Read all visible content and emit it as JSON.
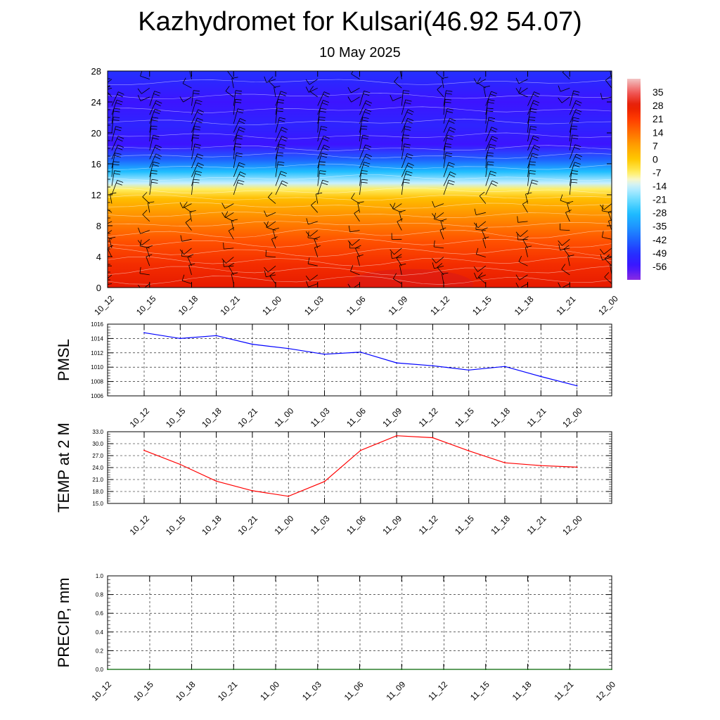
{
  "title": "Kazhydromet for Kulsari(46.92 54.07)",
  "subtitle": "10 May 2025",
  "chart_data": [
    {
      "type": "heatmap",
      "name": "upper-air temperature and wind cross-section",
      "x": [
        "10_12",
        "10_15",
        "10_18",
        "10_21",
        "11_00",
        "11_03",
        "11_06",
        "11_09",
        "11_12",
        "11_15",
        "11_18",
        "11_21",
        "12_00"
      ],
      "ylim": [
        0,
        28
      ],
      "yticks": [
        "0",
        "4",
        "8",
        "12",
        "16",
        "20",
        "24",
        "28"
      ],
      "temperature_by_level": [
        {
          "y": 0,
          "value": 28
        },
        {
          "y": 3,
          "value": 24
        },
        {
          "y": 6,
          "value": 18
        },
        {
          "y": 9,
          "value": 10
        },
        {
          "y": 11.5,
          "value": 2
        },
        {
          "y": 12.7,
          "value": -7
        },
        {
          "y": 13.5,
          "value": -14
        },
        {
          "y": 15,
          "value": -28
        },
        {
          "y": 16.5,
          "value": -42
        },
        {
          "y": 18.5,
          "value": -56
        },
        {
          "y": 21,
          "value": -52
        },
        {
          "y": 24,
          "value": -56
        },
        {
          "y": 28,
          "value": -49
        }
      ],
      "colorbar": {
        "labels": [
          "35",
          "28",
          "21",
          "14",
          "7",
          "0",
          "-7",
          "-14",
          "-21",
          "-28",
          "-35",
          "-42",
          "-49",
          "-56"
        ],
        "range": [
          -63,
          42
        ]
      },
      "wind_barbs": true
    },
    {
      "type": "line",
      "ylabel": "PMSL",
      "categories": [
        "10_12",
        "10_15",
        "10_18",
        "10_21",
        "11_00",
        "11_03",
        "11_06",
        "11_09",
        "11_12",
        "11_15",
        "11_18",
        "11_21",
        "12_00"
      ],
      "values": [
        1014.8,
        1014.0,
        1014.4,
        1013.2,
        1012.6,
        1011.8,
        1012.1,
        1010.6,
        1010.2,
        1009.6,
        1010.1,
        1008.7,
        1007.4
      ],
      "ylim": [
        1006,
        1016
      ],
      "yticks": [
        "1016",
        "1014",
        "1012",
        "1010",
        "1008",
        "1006"
      ],
      "color": "#0000ff",
      "grid": true
    },
    {
      "type": "line",
      "ylabel": "TEMP at 2 M",
      "categories": [
        "10_12",
        "10_15",
        "10_18",
        "10_21",
        "11_00",
        "11_03",
        "11_06",
        "11_09",
        "11_12",
        "11_15",
        "11_18",
        "11_21",
        "12_00"
      ],
      "values": [
        28.3,
        24.8,
        20.6,
        18.2,
        16.8,
        20.5,
        28.3,
        32.0,
        31.5,
        28.2,
        25.2,
        24.5,
        24.1
      ],
      "ylim": [
        15,
        33
      ],
      "yticks": [
        "33.0",
        "30.0",
        "27.0",
        "24.0",
        "21.0",
        "18.0",
        "15.0"
      ],
      "color": "#ff0000",
      "grid": true
    },
    {
      "type": "line",
      "ylabel": "PRECIP, mm",
      "categories": [
        "10_12",
        "10_15",
        "10_18",
        "10_21",
        "11_00",
        "11_03",
        "11_06",
        "11_09",
        "11_12",
        "11_15",
        "11_18",
        "11_21",
        "12_00"
      ],
      "values": [
        0,
        0,
        0,
        0,
        0,
        0,
        0,
        0,
        0,
        0,
        0,
        0,
        0
      ],
      "ylim": [
        0,
        1
      ],
      "yticks": [
        "1.0",
        "0.8",
        "0.6",
        "0.4",
        "0.2",
        "0.0"
      ],
      "color": "#006400",
      "grid": true
    }
  ]
}
